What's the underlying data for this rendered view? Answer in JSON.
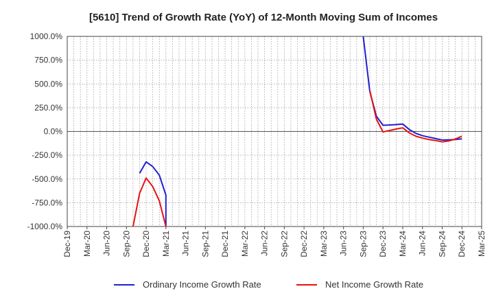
{
  "chart_data": {
    "type": "line",
    "title": "[5610]  Trend of Growth Rate (YoY) of 12-Month Moving Sum of Incomes",
    "xlabel": "",
    "ylabel": "",
    "ylim": [
      -1000,
      1000
    ],
    "ytick_values": [
      1000,
      750,
      500,
      250,
      0,
      -250,
      -500,
      -750,
      -1000
    ],
    "ytick_labels": [
      "1000.0%",
      "750.0%",
      "500.0%",
      "250.0%",
      "0.0%",
      "-250.0%",
      "-500.0%",
      "-750.0%",
      "-1000.0%"
    ],
    "x_categories": [
      "Dec-19",
      "Jan-20",
      "Feb-20",
      "Mar-20",
      "Apr-20",
      "May-20",
      "Jun-20",
      "Jul-20",
      "Aug-20",
      "Sep-20",
      "Oct-20",
      "Nov-20",
      "Dec-20",
      "Jan-21",
      "Feb-21",
      "Mar-21",
      "Apr-21",
      "May-21",
      "Jun-21",
      "Jul-21",
      "Aug-21",
      "Sep-21",
      "Oct-21",
      "Nov-21",
      "Dec-21",
      "Jan-22",
      "Feb-22",
      "Mar-22",
      "Apr-22",
      "May-22",
      "Jun-22",
      "Jul-22",
      "Aug-22",
      "Sep-22",
      "Oct-22",
      "Nov-22",
      "Dec-22",
      "Jan-23",
      "Feb-23",
      "Mar-23",
      "Apr-23",
      "May-23",
      "Jun-23",
      "Jul-23",
      "Aug-23",
      "Sep-23",
      "Oct-23",
      "Nov-23",
      "Dec-23",
      "Jan-24",
      "Feb-24",
      "Mar-24",
      "Apr-24",
      "May-24",
      "Jun-24",
      "Jul-24",
      "Aug-24",
      "Sep-24",
      "Oct-24",
      "Nov-24",
      "Dec-24",
      "Jan-25",
      "Feb-25",
      "Mar-25"
    ],
    "xtick_labels": [
      "Dec-19",
      "Mar-20",
      "Jun-20",
      "Sep-20",
      "Dec-20",
      "Mar-21",
      "Jun-21",
      "Sep-21",
      "Dec-21",
      "Mar-22",
      "Jun-22",
      "Sep-22",
      "Dec-22",
      "Mar-23",
      "Jun-23",
      "Sep-23",
      "Dec-23",
      "Mar-24",
      "Jun-24",
      "Sep-24",
      "Dec-24",
      "Mar-25"
    ],
    "grid": true,
    "legend_position": "bottom-center",
    "series": [
      {
        "name": "Ordinary Income Growth Rate",
        "color": "#1f1fd1",
        "points": [
          [
            "Nov-20",
            -440
          ],
          [
            "Dec-20",
            -320
          ],
          [
            "Jan-21",
            -370
          ],
          [
            "Feb-21",
            -460
          ],
          [
            "Mar-21",
            -670
          ],
          [
            "Mar-21",
            -1000
          ],
          null,
          [
            "Sep-23",
            1000
          ],
          [
            "Oct-23",
            420
          ],
          [
            "Nov-23",
            160
          ],
          [
            "Dec-23",
            65
          ],
          [
            "Jan-24",
            68
          ],
          [
            "Feb-24",
            72
          ],
          [
            "Mar-24",
            78
          ],
          [
            "Apr-24",
            20
          ],
          [
            "May-24",
            -20
          ],
          [
            "Jun-24",
            -45
          ],
          [
            "Jul-24",
            -60
          ],
          [
            "Aug-24",
            -75
          ],
          [
            "Sep-24",
            -90
          ],
          [
            "Oct-24",
            -88
          ],
          [
            "Nov-24",
            -85
          ],
          [
            "Dec-24",
            -78
          ]
        ]
      },
      {
        "name": "Net Income Growth Rate",
        "color": "#e81010",
        "points": [
          [
            "Oct-20",
            -1000
          ],
          [
            "Nov-20",
            -650
          ],
          [
            "Dec-20",
            -490
          ],
          [
            "Jan-21",
            -580
          ],
          [
            "Feb-21",
            -730
          ],
          [
            "Mar-21",
            -1000
          ],
          null,
          [
            "Oct-23",
            430
          ],
          [
            "Nov-23",
            130
          ],
          [
            "Dec-23",
            -5
          ],
          [
            "Jan-24",
            10
          ],
          [
            "Feb-24",
            25
          ],
          [
            "Mar-24",
            38
          ],
          [
            "Apr-24",
            -15
          ],
          [
            "May-24",
            -50
          ],
          [
            "Jun-24",
            -70
          ],
          [
            "Jul-24",
            -85
          ],
          [
            "Aug-24",
            -95
          ],
          [
            "Sep-24",
            -110
          ],
          [
            "Oct-24",
            -100
          ],
          [
            "Nov-24",
            -80
          ],
          [
            "Dec-24",
            -50
          ]
        ]
      }
    ]
  }
}
